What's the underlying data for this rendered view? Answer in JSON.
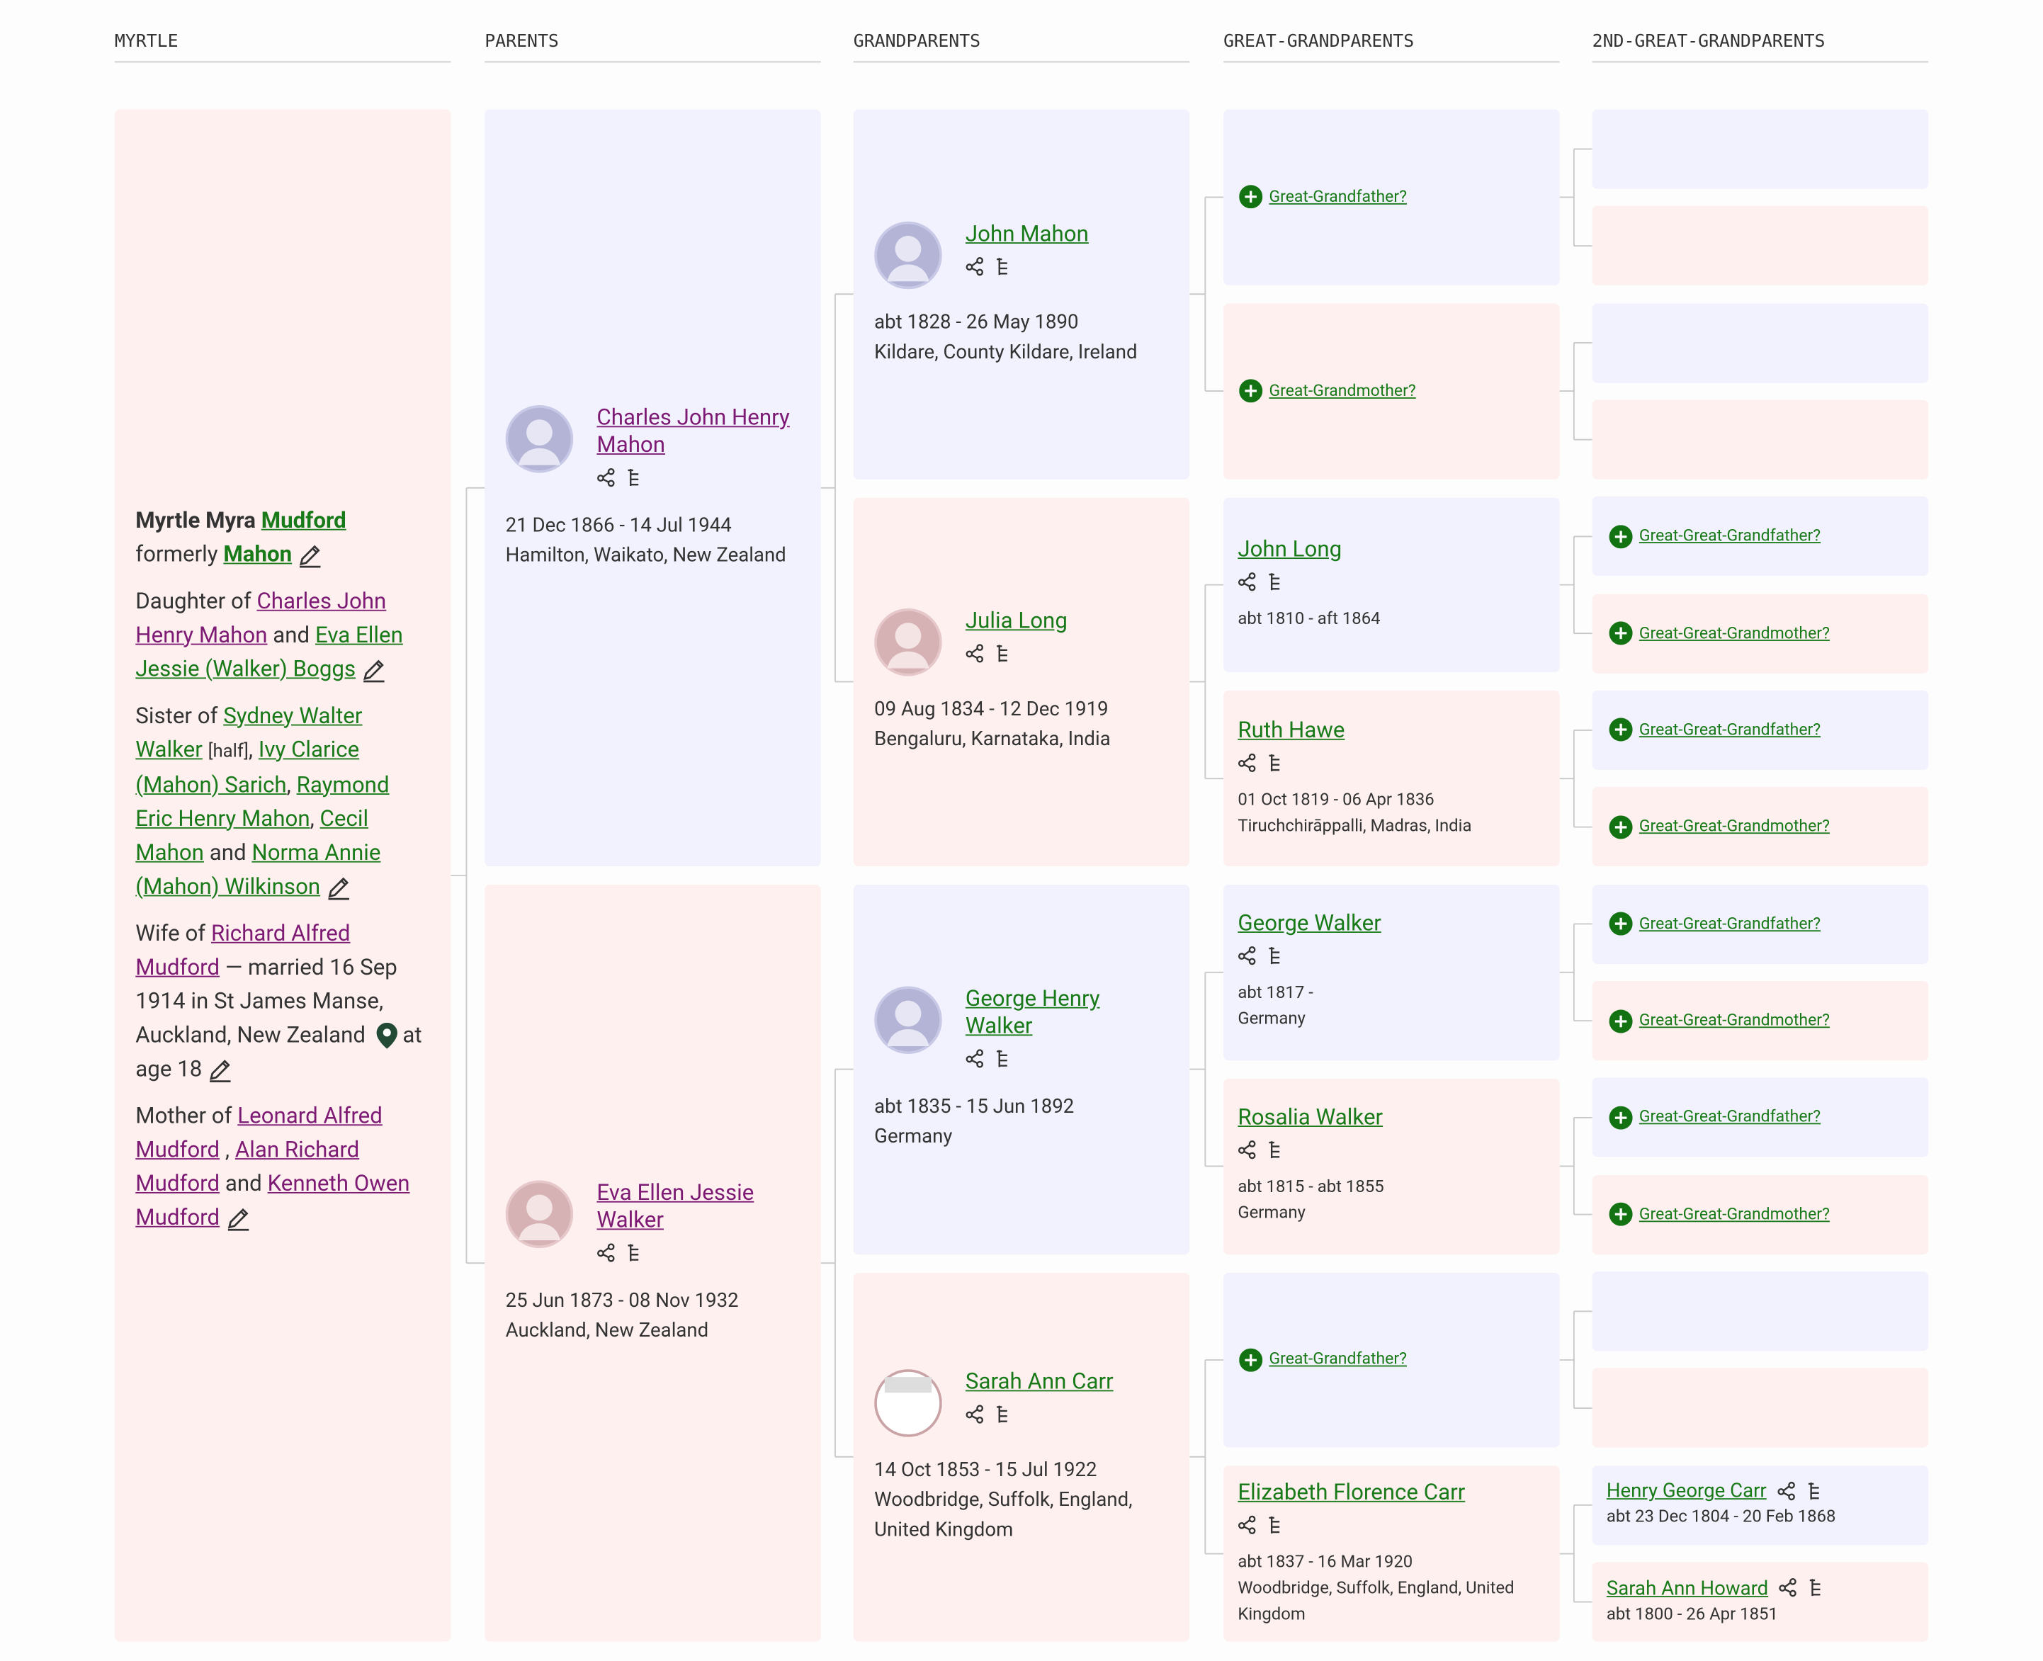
{
  "columns": [
    "MYRTLE",
    "PARENTS",
    "GRANDPARENTS",
    "GREAT-GRANDPARENTS",
    "2ND-GREAT-GRANDPARENTS"
  ],
  "subject": {
    "given": "Myrtle Myra",
    "surname": "Mudford",
    "formerly": "formerly",
    "former_surname": "Mahon",
    "daughter": {
      "label": "Daughter of",
      "father": "Charles John Henry Mahon",
      "and": "and",
      "mother": "Eva Ellen Jessie (Walker) Boggs"
    },
    "sister": {
      "label": "Sister of",
      "siblings": [
        "Sydney Walter Walker",
        "Ivy Clarice (Mahon) Sarich",
        "Raymond Eric Henry Mahon",
        "Cecil Mahon",
        "Norma Annie (Mahon) Wilkinson"
      ],
      "half": "[half]",
      "separator": ",",
      "and": "and"
    },
    "wife": {
      "label": "Wife of",
      "spouse": "Richard Alfred Mudford",
      "details": "— married 16 Sep 1914 in St James Manse, Auckland, New Zealand",
      "age": "at age 18"
    },
    "mother": {
      "label": "Mother of",
      "children": [
        "Leonard Alfred Mudford",
        "Alan Richard Mudford",
        "Kenneth Owen Mudford"
      ],
      "separator": ",",
      "and": "and"
    }
  },
  "parents": [
    {
      "name": "Charles John Henry Mahon",
      "dates": "21 Dec 1866 - 14 Jul 1944",
      "place": "Hamilton, Waikato, New Zealand"
    },
    {
      "name": "Eva Ellen Jessie Walker",
      "dates": "25 Jun 1873 - 08 Nov 1932",
      "place": "Auckland, New Zealand"
    }
  ],
  "grandparents": [
    {
      "name": "John Mahon",
      "dates": "abt 1828 - 26 May 1890",
      "place": "Kildare, County Kildare, Ireland"
    },
    {
      "name": "Julia Long",
      "dates": "09 Aug 1834 - 12 Dec 1919",
      "place": "Bengaluru, Karnataka, India"
    },
    {
      "name": "George Henry Walker",
      "dates": "abt 1835 - 15 Jun 1892",
      "place": "Germany"
    },
    {
      "name": "Sarah Ann Carr",
      "dates": "14 Oct 1853 - 15 Jul 1922",
      "place": "Woodbridge, Suffolk, England, United Kingdom"
    }
  ],
  "great_grandparents": [
    {
      "placeholder": "Great-Grandfather?"
    },
    {
      "placeholder": "Great-Grandmother?"
    },
    {
      "name": "John Long",
      "dates": "abt 1810 - aft 1864"
    },
    {
      "name": "Ruth Hawe",
      "dates": "01 Oct 1819 - 06 Apr 1836",
      "place": "Tiruchchirāppalli, Madras, India"
    },
    {
      "name": "George Walker",
      "dates": "abt 1817 -",
      "place": "Germany"
    },
    {
      "name": "Rosalia Walker",
      "dates": "abt 1815 - abt 1855",
      "place": "Germany"
    },
    {
      "placeholder": "Great-Grandfather?"
    },
    {
      "name": "Elizabeth Florence Carr",
      "dates": "abt 1837 - 16 Mar 1920",
      "place": "Woodbridge, Suffolk, England, United Kingdom"
    }
  ],
  "great2_grandparents": [
    null,
    null,
    null,
    null,
    {
      "placeholder": "Great-Great-Grandfather?"
    },
    {
      "placeholder": "Great-Great-Grandmother?"
    },
    {
      "placeholder": "Great-Great-Grandfather?"
    },
    {
      "placeholder": "Great-Great-Grandmother?"
    },
    {
      "placeholder": "Great-Great-Grandfather?"
    },
    {
      "placeholder": "Great-Great-Grandmother?"
    },
    {
      "placeholder": "Great-Great-Grandfather?"
    },
    {
      "placeholder": "Great-Great-Grandmother?"
    },
    null,
    null,
    {
      "name": "Henry George Carr",
      "dates": "abt 23 Dec 1804 - 20 Feb 1868"
    },
    {
      "name": "Sarah Ann Howard",
      "dates": "abt 1800 - 26 Apr 1851"
    }
  ]
}
